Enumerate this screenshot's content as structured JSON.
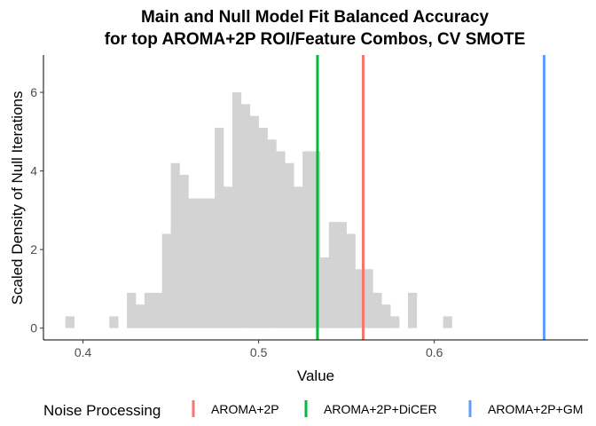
{
  "chart_data": {
    "type": "bar",
    "title_line1": "Main and Null Model Fit Balanced Accuracy",
    "title_line2": "for top AROMA+2P ROI/Feature Combos, CV SMOTE",
    "xlabel": "Value",
    "ylabel": "Scaled Density of Null Iterations",
    "xlim": [
      0.3775,
      0.6875
    ],
    "ylim": [
      -0.3,
      6.95
    ],
    "x_ticks": [
      0.4,
      0.5,
      0.6
    ],
    "x_tick_labels": [
      "0.4",
      "0.5",
      "0.6"
    ],
    "y_ticks": [
      0,
      2,
      4,
      6
    ],
    "y_tick_labels": [
      "0",
      "2",
      "4",
      "6"
    ],
    "grid": false,
    "histogram": {
      "bin_width": 0.005,
      "fill_color": "#d3d3d3",
      "bin_starts": [
        0.39,
        0.395,
        0.4,
        0.405,
        0.41,
        0.415,
        0.42,
        0.425,
        0.43,
        0.435,
        0.44,
        0.445,
        0.45,
        0.455,
        0.46,
        0.465,
        0.47,
        0.475,
        0.48,
        0.485,
        0.49,
        0.495,
        0.5,
        0.505,
        0.51,
        0.515,
        0.52,
        0.525,
        0.53,
        0.535,
        0.54,
        0.545,
        0.55,
        0.555,
        0.56,
        0.565,
        0.57,
        0.575,
        0.58,
        0.585,
        0.59,
        0.595,
        0.6,
        0.605,
        0.61
      ],
      "densities": [
        0.3,
        0.0,
        0.0,
        0.0,
        0.0,
        0.3,
        0.0,
        0.9,
        0.6,
        0.9,
        0.9,
        2.4,
        4.2,
        3.9,
        3.3,
        3.3,
        3.3,
        5.1,
        3.6,
        6.0,
        5.7,
        5.4,
        5.1,
        4.8,
        4.5,
        4.2,
        3.6,
        4.5,
        4.5,
        1.8,
        2.7,
        2.7,
        2.4,
        1.5,
        1.5,
        0.9,
        0.6,
        0.3,
        0.0,
        0.9,
        0.0,
        0.0,
        0.0,
        0.3,
        0.0
      ]
    },
    "vlines": [
      {
        "name": "AROMA+2P",
        "x": 0.5595,
        "color": "#f8766d"
      },
      {
        "name": "AROMA+2P+DiCER",
        "x": 0.5335,
        "color": "#00ba38"
      },
      {
        "name": "AROMA+2P+GM",
        "x": 0.6625,
        "color": "#619cff"
      }
    ],
    "legend": {
      "title": "Noise Processing",
      "position": "bottom",
      "labels": [
        "AROMA+2P",
        "AROMA+2P+DiCER",
        "AROMA+2P+GM"
      ]
    }
  }
}
